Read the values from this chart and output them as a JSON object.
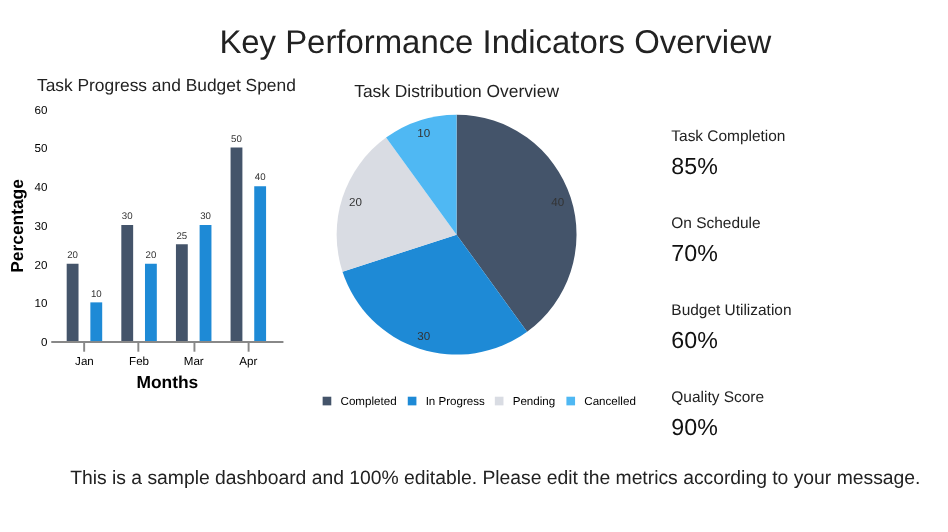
{
  "chart_data": [
    {
      "type": "other",
      "title": "Key Performance Indicators Overview",
      "annotations": [
        "This is a sample dashboard and 100% editable. Please edit the metrics according to your message."
      ]
    },
    {
      "type": "bar",
      "title": "Task Progress and Budget Spend",
      "xlabel": "Months",
      "ylabel": "Percentage",
      "categories": [
        "Jan",
        "Feb",
        "Mar",
        "Apr"
      ],
      "series": [
        {
          "color": "#44546a",
          "values": [
            20,
            30,
            25,
            50
          ]
        },
        {
          "color": "#1e8ad6",
          "values": [
            10,
            20,
            30,
            40
          ]
        }
      ],
      "ylim": [
        0,
        60
      ],
      "yticks": [
        0,
        10,
        20,
        30,
        40,
        50,
        60
      ],
      "data_labels": true,
      "grid": false,
      "legend": false
    },
    {
      "type": "pie",
      "title": "Task Distribution Overview",
      "categories": [
        "Completed",
        "In Progress",
        "Pending",
        "Cancelled"
      ],
      "values": [
        40,
        30,
        20,
        10
      ],
      "colors": [
        "#44546a",
        "#1e8ad6",
        "#d9dce3",
        "#4fb8f3"
      ],
      "data_labels": true,
      "legend": "bottom"
    },
    {
      "type": "other",
      "categories": [
        "Task Completion",
        "On Schedule",
        "Budget Utilization",
        "Quality Score"
      ],
      "value_labels": [
        "85%",
        "70%",
        "60%",
        "90%"
      ]
    }
  ]
}
